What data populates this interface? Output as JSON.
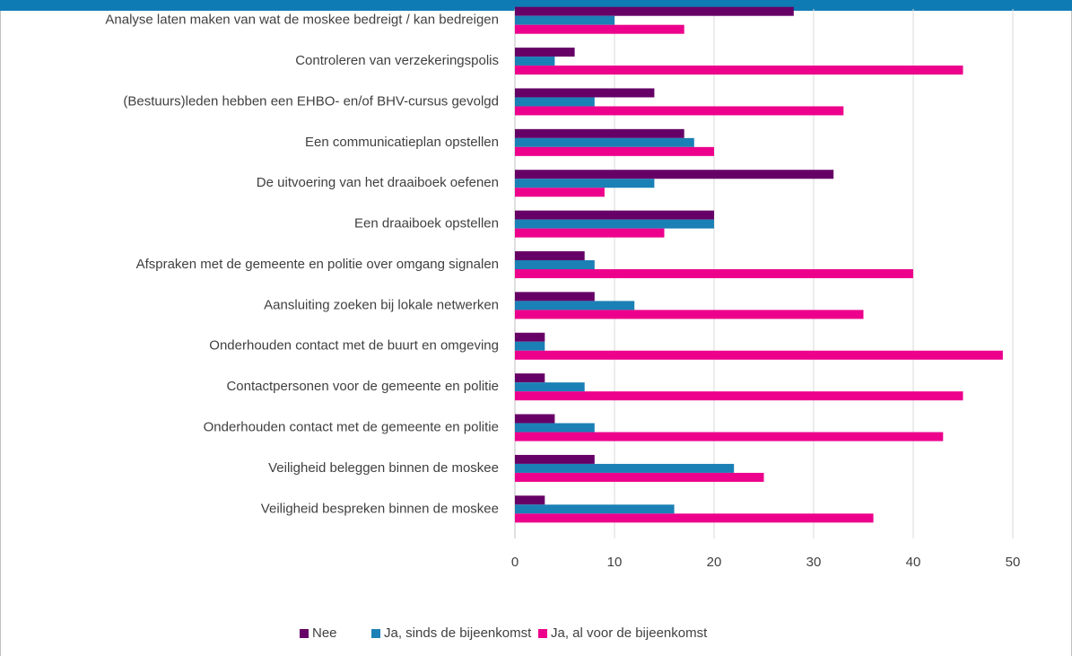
{
  "chart_data": {
    "type": "hbar",
    "categories": [
      "Analyse laten maken van wat de moskee bedreigt / kan bedreigen",
      "Controleren van verzekeringspolis",
      "(Bestuurs)leden hebben een EHBO- en/of BHV-cursus  gevolgd",
      "Een communicatieplan opstellen",
      "De uitvoering van het draaiboek oefenen",
      "Een draaiboek opstellen",
      "Afspraken met de gemeente en politie over omgang signalen",
      "Aansluiting zoeken bij lokale netwerken",
      "Onderhouden contact met de buurt en omgeving",
      "Contactpersonen voor de gemeente en politie",
      "Onderhouden contact met de gemeente en politie",
      "Veiligheid beleggen binnen de moskee",
      "Veiligheid bespreken binnen de moskee"
    ],
    "series": [
      {
        "name": "Nee",
        "color": "#660066",
        "values": [
          28,
          6,
          14,
          17,
          32,
          20,
          7,
          8,
          3,
          3,
          4,
          8,
          3
        ]
      },
      {
        "name": "Ja, sinds de bijeenkomst",
        "color": "#1b80b6",
        "values": [
          10,
          4,
          8,
          18,
          14,
          20,
          8,
          12,
          3,
          7,
          8,
          22,
          16
        ]
      },
      {
        "name": "Ja, al voor de bijeenkomst",
        "color": "#ec008c",
        "values": [
          17,
          45,
          33,
          20,
          9,
          15,
          40,
          35,
          49,
          45,
          43,
          25,
          36
        ]
      }
    ],
    "xlim": [
      0,
      50
    ],
    "xticks": [
      0,
      10,
      20,
      30,
      40,
      50
    ],
    "grid": true,
    "legend": "bottom"
  }
}
